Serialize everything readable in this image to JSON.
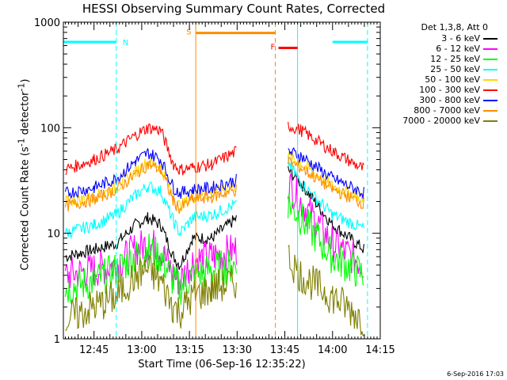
{
  "chart_data": {
    "type": "line",
    "title": "HESSI Observing Summary Count Rates, Corrected",
    "xlabel": "Start Time (06-Sep-16 12:35:22)",
    "ylabel_main": "Corrected Count Rate (s",
    "ylabel_sup1": "-1",
    "ylabel_mid": " detector",
    "ylabel_sup2": "-1",
    "ylabel_end": ")",
    "yscale": "log",
    "ylim": [
      1,
      1000
    ],
    "xlim": [
      "12:35:22",
      "14:15"
    ],
    "x_ticks": [
      "12:45",
      "13:00",
      "13:15",
      "13:30",
      "13:45",
      "14:00",
      "14:15"
    ],
    "y_ticks": [
      "1",
      "10",
      "100",
      "1000"
    ],
    "legend_title": "Det 1,3,8, Att 0",
    "series": [
      {
        "name": "3 - 6 keV",
        "color": "#000000",
        "points": [
          [
            "12:36",
            6
          ],
          [
            "12:45",
            7
          ],
          [
            "12:52",
            8
          ],
          [
            "12:58",
            12
          ],
          [
            "13:02",
            14
          ],
          [
            "13:06",
            12
          ],
          [
            "13:10",
            6
          ],
          [
            "13:12",
            5
          ],
          [
            "13:16",
            9
          ],
          [
            "13:22",
            9
          ],
          [
            "13:30",
            14
          ],
          [
            "13:42",
            null
          ],
          [
            "13:46",
            40
          ],
          [
            "13:50",
            30
          ],
          [
            "14:00",
            12
          ],
          [
            "14:10",
            7
          ]
        ]
      },
      {
        "name": "6 - 12 keV",
        "color": "#ff00ff",
        "points": [
          [
            "12:36",
            4
          ],
          [
            "12:45",
            4.5
          ],
          [
            "12:52",
            5
          ],
          [
            "12:58",
            7
          ],
          [
            "13:02",
            8
          ],
          [
            "13:06",
            7
          ],
          [
            "13:10",
            4
          ],
          [
            "13:12",
            3.5
          ],
          [
            "13:16",
            5.5
          ],
          [
            "13:22",
            6
          ],
          [
            "13:30",
            7
          ],
          [
            "13:42",
            null
          ],
          [
            "13:46",
            30
          ],
          [
            "13:50",
            20
          ],
          [
            "14:00",
            8
          ],
          [
            "14:10",
            5
          ]
        ]
      },
      {
        "name": "12 - 25 keV",
        "color": "#00ff00",
        "points": [
          [
            "12:36",
            3
          ],
          [
            "12:45",
            3.5
          ],
          [
            "12:52",
            4.5
          ],
          [
            "12:58",
            6
          ],
          [
            "13:02",
            7
          ],
          [
            "13:06",
            6
          ],
          [
            "13:10",
            3.5
          ],
          [
            "13:12",
            3
          ],
          [
            "13:16",
            4
          ],
          [
            "13:22",
            4.5
          ],
          [
            "13:30",
            5
          ],
          [
            "13:42",
            null
          ],
          [
            "13:46",
            20
          ],
          [
            "13:50",
            14
          ],
          [
            "14:00",
            6
          ],
          [
            "14:10",
            4
          ]
        ]
      },
      {
        "name": "25 - 50 keV",
        "color": "#00ffff",
        "points": [
          [
            "12:36",
            10
          ],
          [
            "12:45",
            12
          ],
          [
            "12:52",
            15
          ],
          [
            "12:58",
            23
          ],
          [
            "13:02",
            28
          ],
          [
            "13:06",
            25
          ],
          [
            "13:10",
            13
          ],
          [
            "13:12",
            10
          ],
          [
            "13:16",
            14
          ],
          [
            "13:22",
            15
          ],
          [
            "13:30",
            19
          ],
          [
            "13:42",
            null
          ],
          [
            "13:46",
            48
          ],
          [
            "13:50",
            30
          ],
          [
            "14:00",
            15
          ],
          [
            "14:10",
            11
          ]
        ]
      },
      {
        "name": "50 - 100 keV",
        "color": "#ffd700",
        "points": [
          [
            "12:36",
            20
          ],
          [
            "12:45",
            22
          ],
          [
            "12:52",
            27
          ],
          [
            "12:58",
            38
          ],
          [
            "13:02",
            48
          ],
          [
            "13:06",
            42
          ],
          [
            "13:10",
            22
          ],
          [
            "13:12",
            18
          ],
          [
            "13:16",
            22
          ],
          [
            "13:22",
            24
          ],
          [
            "13:30",
            28
          ],
          [
            "13:42",
            null
          ],
          [
            "13:46",
            53
          ],
          [
            "13:50",
            46
          ],
          [
            "14:00",
            28
          ],
          [
            "14:10",
            21
          ]
        ]
      },
      {
        "name": "100 - 300 keV",
        "color": "#ff0000",
        "points": [
          [
            "12:36",
            40
          ],
          [
            "12:45",
            50
          ],
          [
            "12:52",
            62
          ],
          [
            "12:58",
            85
          ],
          [
            "13:02",
            100
          ],
          [
            "13:06",
            95
          ],
          [
            "13:10",
            45
          ],
          [
            "13:12",
            40
          ],
          [
            "13:16",
            42
          ],
          [
            "13:22",
            45
          ],
          [
            "13:30",
            60
          ],
          [
            "13:42",
            null
          ],
          [
            "13:46",
            105
          ],
          [
            "13:50",
            95
          ],
          [
            "14:00",
            60
          ],
          [
            "14:10",
            40
          ]
        ]
      },
      {
        "name": "300 - 800 keV",
        "color": "#0000ff",
        "points": [
          [
            "12:36",
            24
          ],
          [
            "12:45",
            27
          ],
          [
            "12:52",
            33
          ],
          [
            "12:58",
            48
          ],
          [
            "13:02",
            58
          ],
          [
            "13:06",
            50
          ],
          [
            "13:10",
            27
          ],
          [
            "13:12",
            24
          ],
          [
            "13:16",
            26
          ],
          [
            "13:22",
            27
          ],
          [
            "13:30",
            32
          ],
          [
            "13:42",
            null
          ],
          [
            "13:46",
            60
          ],
          [
            "13:50",
            54
          ],
          [
            "14:00",
            33
          ],
          [
            "14:10",
            24
          ]
        ]
      },
      {
        "name": "800 - 7000 keV",
        "color": "#ff8c00",
        "points": [
          [
            "12:36",
            18
          ],
          [
            "12:45",
            21
          ],
          [
            "12:52",
            26
          ],
          [
            "12:58",
            36
          ],
          [
            "13:02",
            45
          ],
          [
            "13:06",
            40
          ],
          [
            "13:10",
            20
          ],
          [
            "13:12",
            17
          ],
          [
            "13:16",
            21
          ],
          [
            "13:22",
            22
          ],
          [
            "13:30",
            26
          ],
          [
            "13:42",
            null
          ],
          [
            "13:46",
            48
          ],
          [
            "13:50",
            42
          ],
          [
            "14:00",
            26
          ],
          [
            "14:10",
            19
          ]
        ]
      },
      {
        "name": "7000 - 20000 keV",
        "color": "#808000",
        "points": [
          [
            "12:36",
            1.5
          ],
          [
            "12:45",
            2
          ],
          [
            "12:52",
            2.5
          ],
          [
            "12:58",
            4
          ],
          [
            "13:02",
            4.5
          ],
          [
            "13:06",
            3.5
          ],
          [
            "13:10",
            2
          ],
          [
            "13:12",
            1.8
          ],
          [
            "13:16",
            2.5
          ],
          [
            "13:22",
            3
          ],
          [
            "13:30",
            3.5
          ],
          [
            "13:42",
            null
          ],
          [
            "13:46",
            6
          ],
          [
            "13:50",
            4
          ],
          [
            "14:00",
            2.5
          ],
          [
            "14:10",
            1.5
          ]
        ]
      }
    ],
    "annotations": [
      {
        "label": "N",
        "color": "#00ffff",
        "y": 650,
        "start": "12:35:22",
        "end": "12:52"
      },
      {
        "label": "",
        "color": "#00ffff",
        "y": 650,
        "start": "14:00",
        "end": "14:11"
      },
      {
        "label": "S",
        "color": "#ff8c00",
        "y": 790,
        "start": "13:17",
        "end": "13:42"
      },
      {
        "label": "F",
        "color": "#ff0000",
        "y": 570,
        "start": "13:43",
        "end": "13:49"
      }
    ],
    "vlines": [
      {
        "time": "12:52",
        "color": "#00ffff",
        "dashed": true
      },
      {
        "time": "13:17",
        "color": "#ff8c00",
        "dashed": false
      },
      {
        "time": "13:42",
        "color": "#ff8c00",
        "dashed": true
      },
      {
        "time": "13:49",
        "color": "#00ffff",
        "dashed": false
      },
      {
        "time": "14:11",
        "color": "#00ffff",
        "dashed": true
      }
    ],
    "grid": false,
    "legend_position": "right"
  },
  "footer": {
    "timestamp": "6-Sep-2016 17:03"
  }
}
